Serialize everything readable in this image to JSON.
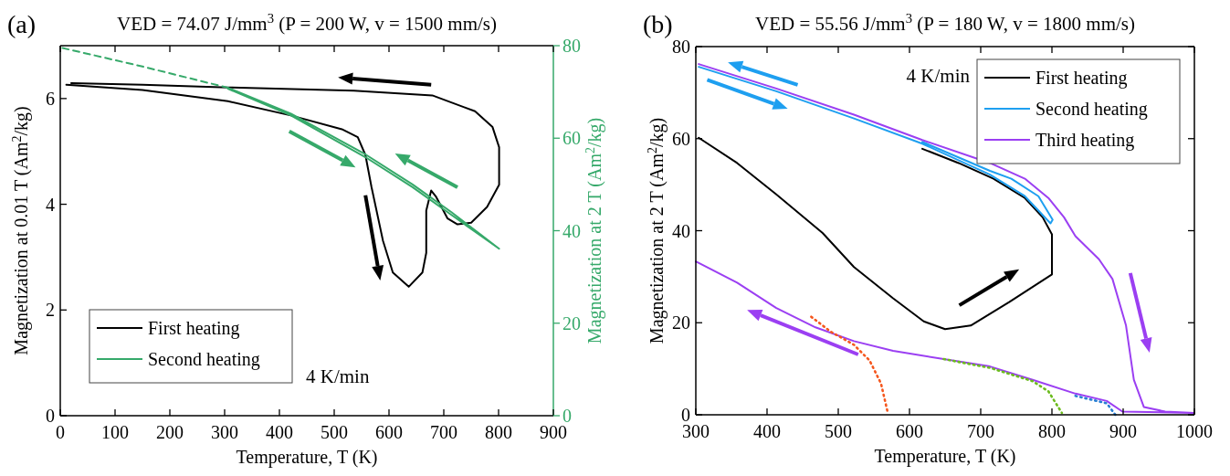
{
  "chart_data": [
    {
      "type": "line",
      "title": "VED = 74.07 J/mm$^{3}$ (P = 200 W, v = 1500 mm/s)",
      "xlabel": "Temperature, T (K)",
      "ylabel": "Magnetization at 0.01 T (Am$^{2}$/kg)",
      "y2label": "Magnetization at 2 T (Am$^{2}$/kg)",
      "xlim": [
        0,
        900
      ],
      "xticks": [
        0,
        100,
        200,
        300,
        400,
        500,
        600,
        700,
        800,
        900
      ],
      "ylim": [
        0,
        7
      ],
      "yticks": [
        0,
        2,
        4,
        6
      ],
      "y2lim": [
        0,
        80
      ],
      "y2ticks": [
        0,
        20,
        40,
        60,
        80
      ],
      "grid": false,
      "legend": "bottom left",
      "annotations": [
        "(a)",
        "4 K/min"
      ],
      "series": [
        {
          "name": "First heating",
          "color": "#000000",
          "axis": "y",
          "x": [
            11,
            150,
            306,
            421,
            514,
            543,
            557,
            568,
            589,
            607,
            636,
            661,
            668,
            668,
            677,
            686,
            707,
            725,
            750,
            779,
            801,
            801,
            789,
            757,
            679,
            536,
            306,
            150,
            20
          ],
          "values": [
            6.26,
            6.16,
            5.95,
            5.68,
            5.42,
            5.27,
            4.93,
            4.33,
            3.31,
            2.71,
            2.44,
            2.71,
            3.08,
            3.88,
            4.26,
            4.14,
            3.73,
            3.62,
            3.65,
            3.95,
            4.37,
            5.08,
            5.46,
            5.76,
            6.06,
            6.15,
            6.21,
            6.26,
            6.29
          ]
        },
        {
          "name": "Second heating",
          "color": "#36a96a",
          "axis": "y2",
          "x": [
            306,
            421,
            557,
            643,
            714,
            801,
            714,
            643,
            557,
            421,
            306
          ],
          "values": [
            70.7,
            64.9,
            55.9,
            49.4,
            43.4,
            36.1,
            44.0,
            50.0,
            56.5,
            65.3,
            70.9
          ]
        },
        {
          "color": "#36a96a",
          "axis": "y2",
          "line_style": "dashed",
          "x": [
            4,
            150,
            306
          ],
          "values": [
            79.5,
            75.5,
            70.9
          ]
        }
      ]
    },
    {
      "type": "line",
      "title": "VED = 55.56 J/mm$^{3}$ (P = 180 W, v = 1800 mm/s)",
      "xlabel": "Temperature, T (K)",
      "ylabel": "Magnetization at 2 T (Am$^{2}$/kg)",
      "xlim": [
        300,
        1000
      ],
      "xticks": [
        300,
        400,
        500,
        600,
        700,
        800,
        900,
        1000
      ],
      "ylim": [
        0,
        80
      ],
      "yticks": [
        0,
        20,
        40,
        60,
        80
      ],
      "grid": false,
      "legend": "top right",
      "annotations": [
        "(b)",
        "4 K/min"
      ],
      "series": [
        {
          "name": "First heating",
          "color": "#000000",
          "x": [
            304,
            358,
            413,
            478,
            522,
            577,
            620,
            650,
            686,
            740,
            800,
            800,
            787,
            762,
            718,
            669,
            618
          ],
          "values": [
            60.2,
            54.7,
            47.9,
            39.5,
            32.1,
            25.3,
            20.3,
            18.6,
            19.4,
            24.5,
            30.5,
            39.2,
            42.9,
            47.1,
            51.3,
            54.7,
            57.8
          ]
        },
        {
          "name": "Second heating",
          "color": "#1e9ff0",
          "x": [
            304,
            413,
            522,
            618,
            713,
            762,
            798,
            801,
            781,
            743,
            713,
            618
          ],
          "values": [
            75.6,
            70.3,
            64.4,
            58.9,
            52.2,
            47.5,
            41.6,
            42.4,
            47.5,
            51.3,
            53.0,
            59.3
          ]
        },
        {
          "name": "Third heating",
          "color": "#9b3ff2",
          "x": [
            304,
            413,
            522,
            618,
            713,
            762,
            795,
            817,
            833,
            866,
            885,
            904,
            915,
            929,
            959,
            1000,
            899,
            877,
            833,
            773,
            713,
            648,
            577,
            522,
            468,
            413,
            358,
            300
          ],
          "values": [
            76.2,
            70.9,
            65.2,
            59.7,
            54.7,
            51.3,
            47.1,
            42.9,
            38.8,
            33.8,
            29.5,
            19.4,
            7.6,
            1.7,
            0.7,
            0.4,
            0.7,
            3.0,
            4.6,
            7.6,
            10.5,
            12.1,
            13.9,
            16.0,
            19.0,
            23.2,
            28.7,
            33.3
          ]
        },
        {
          "color": "#f5571e",
          "line_style": "dotted",
          "x": [
            462,
            489,
            522,
            544,
            560,
            569
          ],
          "values": [
            21.3,
            18.1,
            15.2,
            11.8,
            6.8,
            0.8
          ]
        },
        {
          "color": "#6cbb1e",
          "line_style": "dotted",
          "x": [
            648,
            713,
            773,
            795,
            814
          ],
          "values": [
            12.1,
            10.2,
            7.3,
            5.1,
            0.4
          ]
        },
        {
          "color": "#2a7fd4",
          "line_style": "dotted",
          "x": [
            833,
            877,
            889
          ],
          "values": [
            4.1,
            2.5,
            0
          ]
        }
      ]
    }
  ]
}
